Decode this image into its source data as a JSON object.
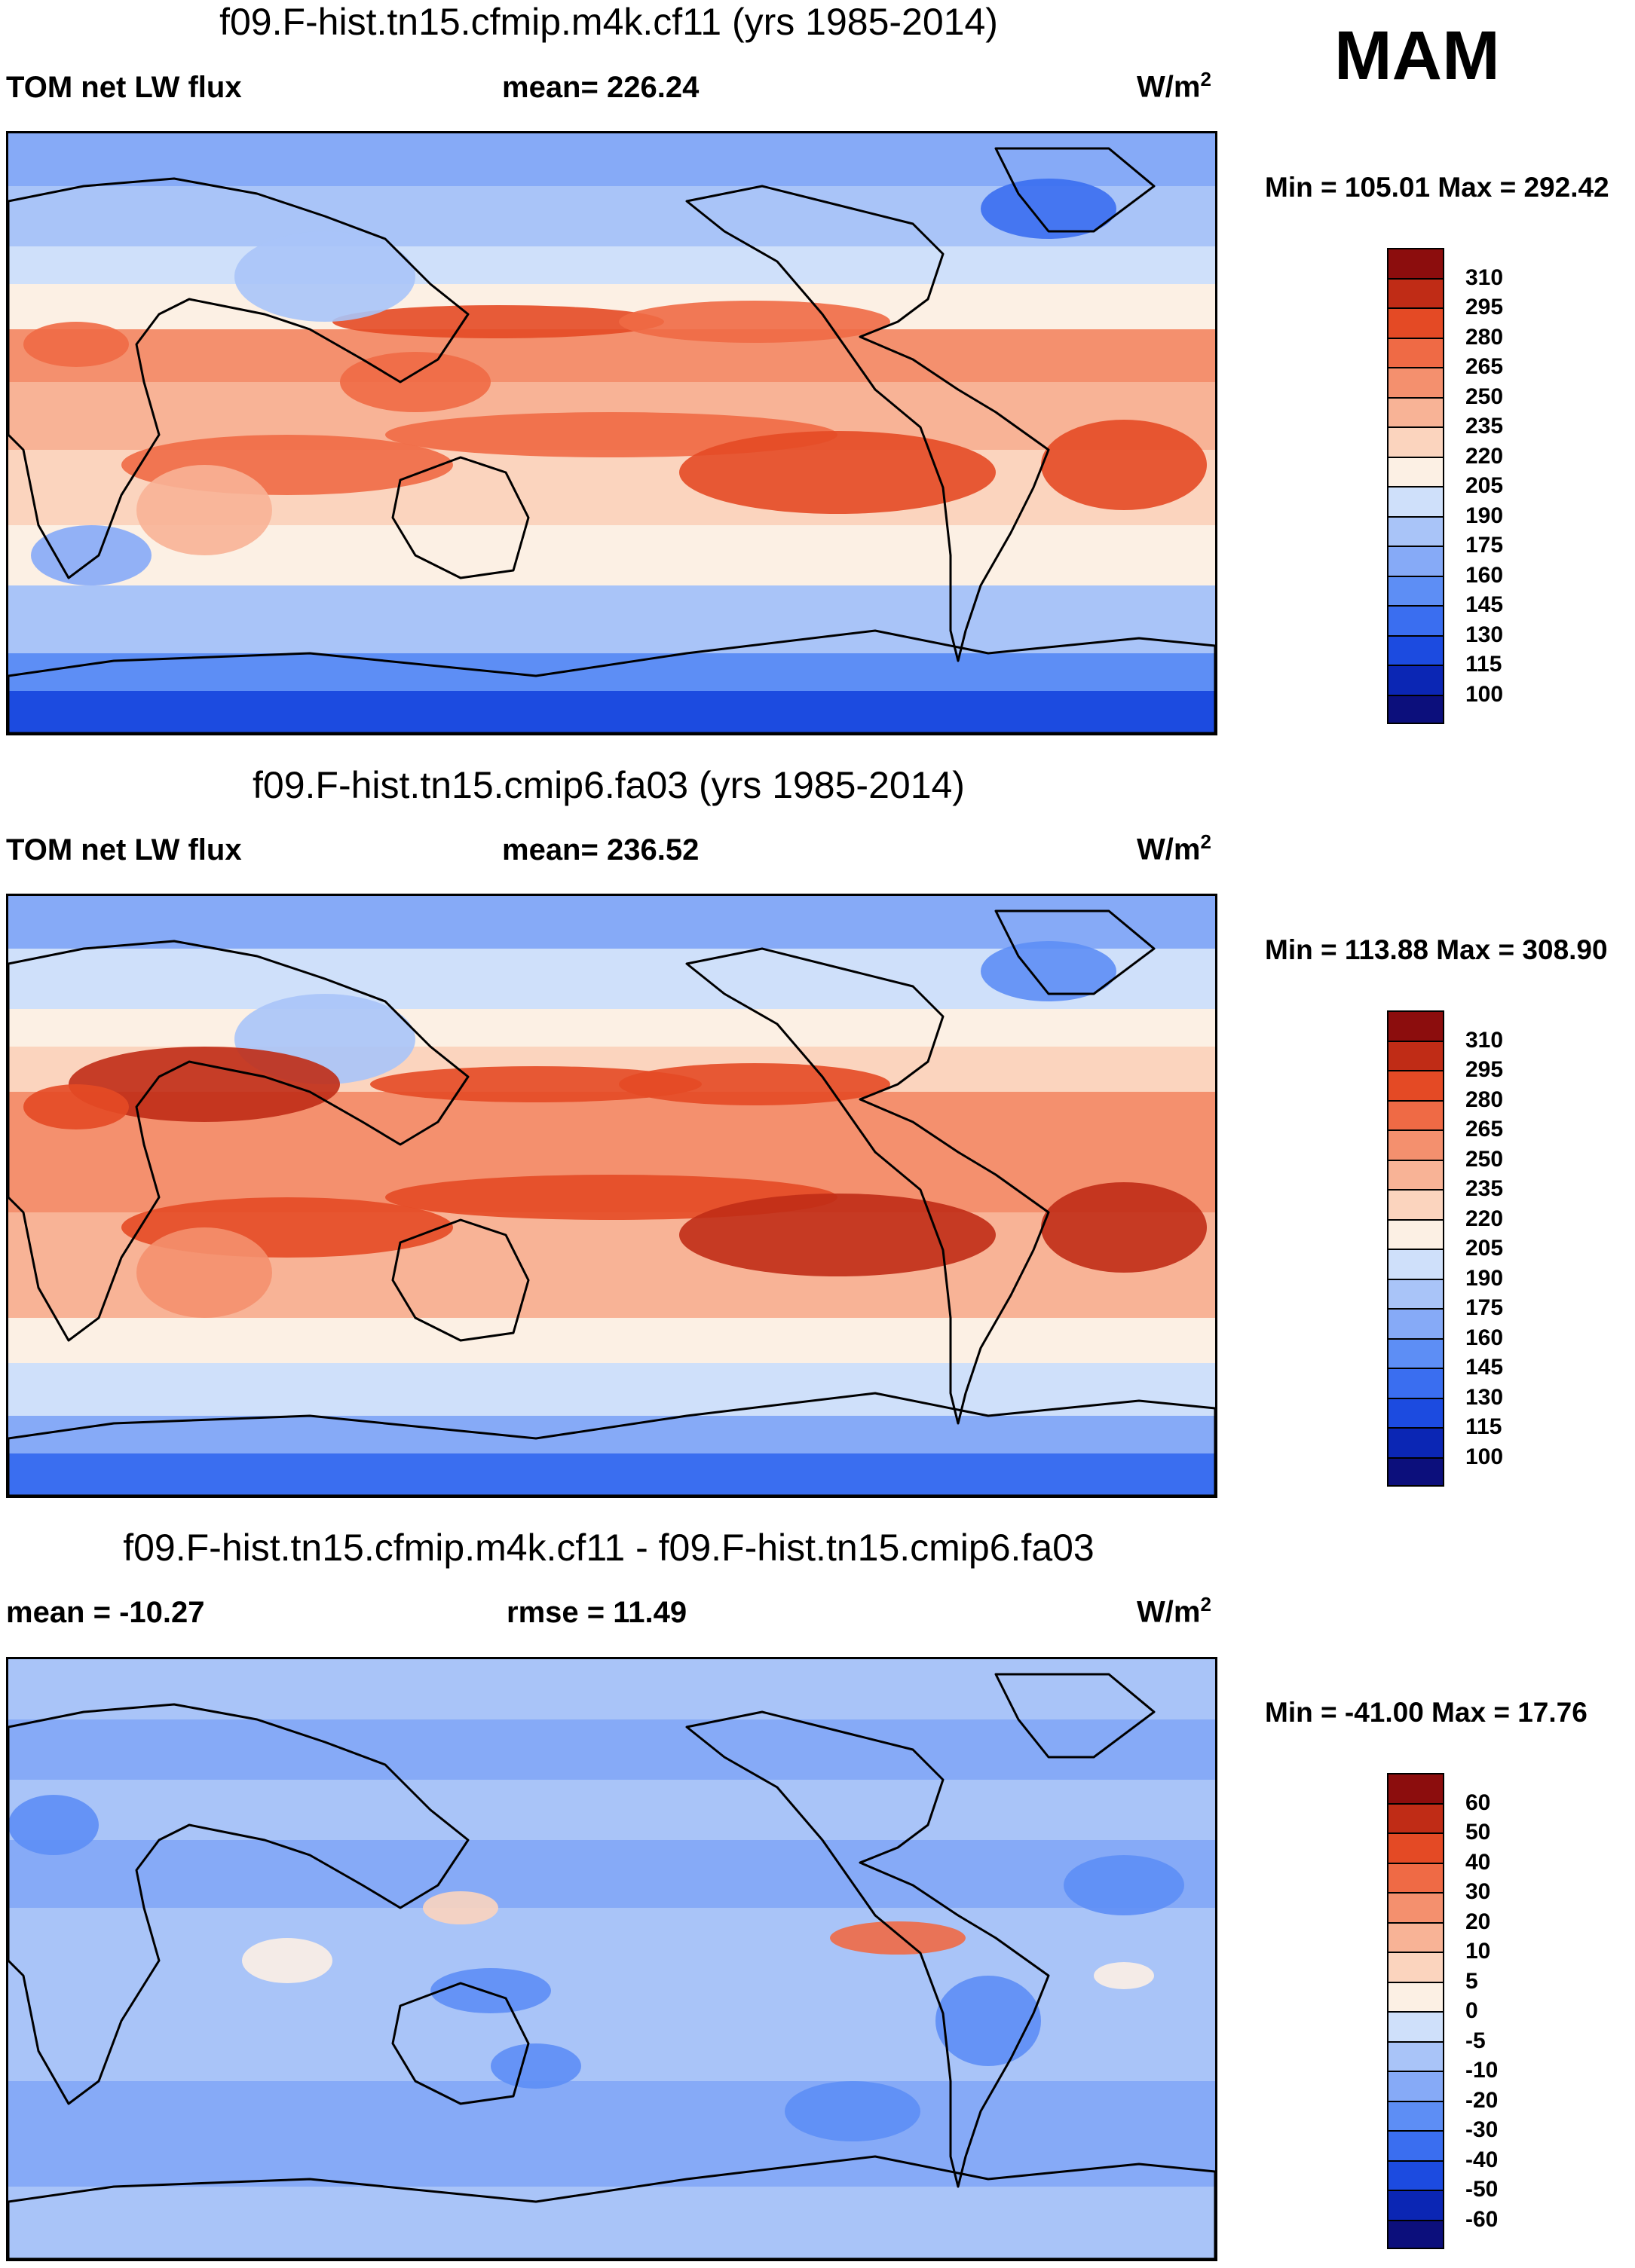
{
  "season": "MAM",
  "colors": {
    "abs": [
      "#0c0f7c",
      "#0b26b4",
      "#1c4be0",
      "#3a6ef0",
      "#5d8ef5",
      "#86aaf7",
      "#a9c4f8",
      "#cfe0fa",
      "#fcf0e4",
      "#fbd4be",
      "#f8b396",
      "#f4906e",
      "#ef6a45",
      "#e44a25",
      "#c02c16",
      "#8c0d0d"
    ],
    "diff": [
      "#0c0f7c",
      "#0b26b4",
      "#1c4be0",
      "#3a6ef0",
      "#5d8ef5",
      "#86aaf7",
      "#a9c4f8",
      "#cfe0fa",
      "#fcf0e4",
      "#fbd4be",
      "#f8b396",
      "#f4906e",
      "#ef6a45",
      "#e44a25",
      "#c02c16",
      "#8c0d0d"
    ]
  },
  "panels": [
    {
      "title": "f09.F-hist.tn15.cfmip.m4k.cf11 (yrs 1985-2014)",
      "left_label": "TOM net LW flux",
      "center_label": "mean= 226.24",
      "units": "W/m",
      "units_sup": "2",
      "minmax": "Min = 105.01 Max = 292.42",
      "kind": "abs",
      "levels": [
        "310",
        "295",
        "280",
        "265",
        "250",
        "235",
        "220",
        "205",
        "190",
        "175",
        "160",
        "145",
        "130",
        "115",
        "100"
      ]
    },
    {
      "title": "f09.F-hist.tn15.cmip6.fa03 (yrs 1985-2014)",
      "left_label": "TOM net LW flux",
      "center_label": "mean= 236.52",
      "units": "W/m",
      "units_sup": "2",
      "minmax": "Min = 113.88 Max = 308.90",
      "kind": "abs2",
      "levels": [
        "310",
        "295",
        "280",
        "265",
        "250",
        "235",
        "220",
        "205",
        "190",
        "175",
        "160",
        "145",
        "130",
        "115",
        "100"
      ]
    },
    {
      "title": "f09.F-hist.tn15.cfmip.m4k.cf11 - f09.F-hist.tn15.cmip6.fa03",
      "left_label": "mean = -10.27",
      "center_label": "rmse =  11.49",
      "units": "W/m",
      "units_sup": "2",
      "minmax": "Min = -41.00 Max =  17.76",
      "kind": "diff",
      "levels": [
        "60",
        "50",
        "40",
        "30",
        "20",
        "10",
        "5",
        "0",
        "-5",
        "-10",
        "-20",
        "-30",
        "-40",
        "-50",
        "-60"
      ]
    }
  ]
}
